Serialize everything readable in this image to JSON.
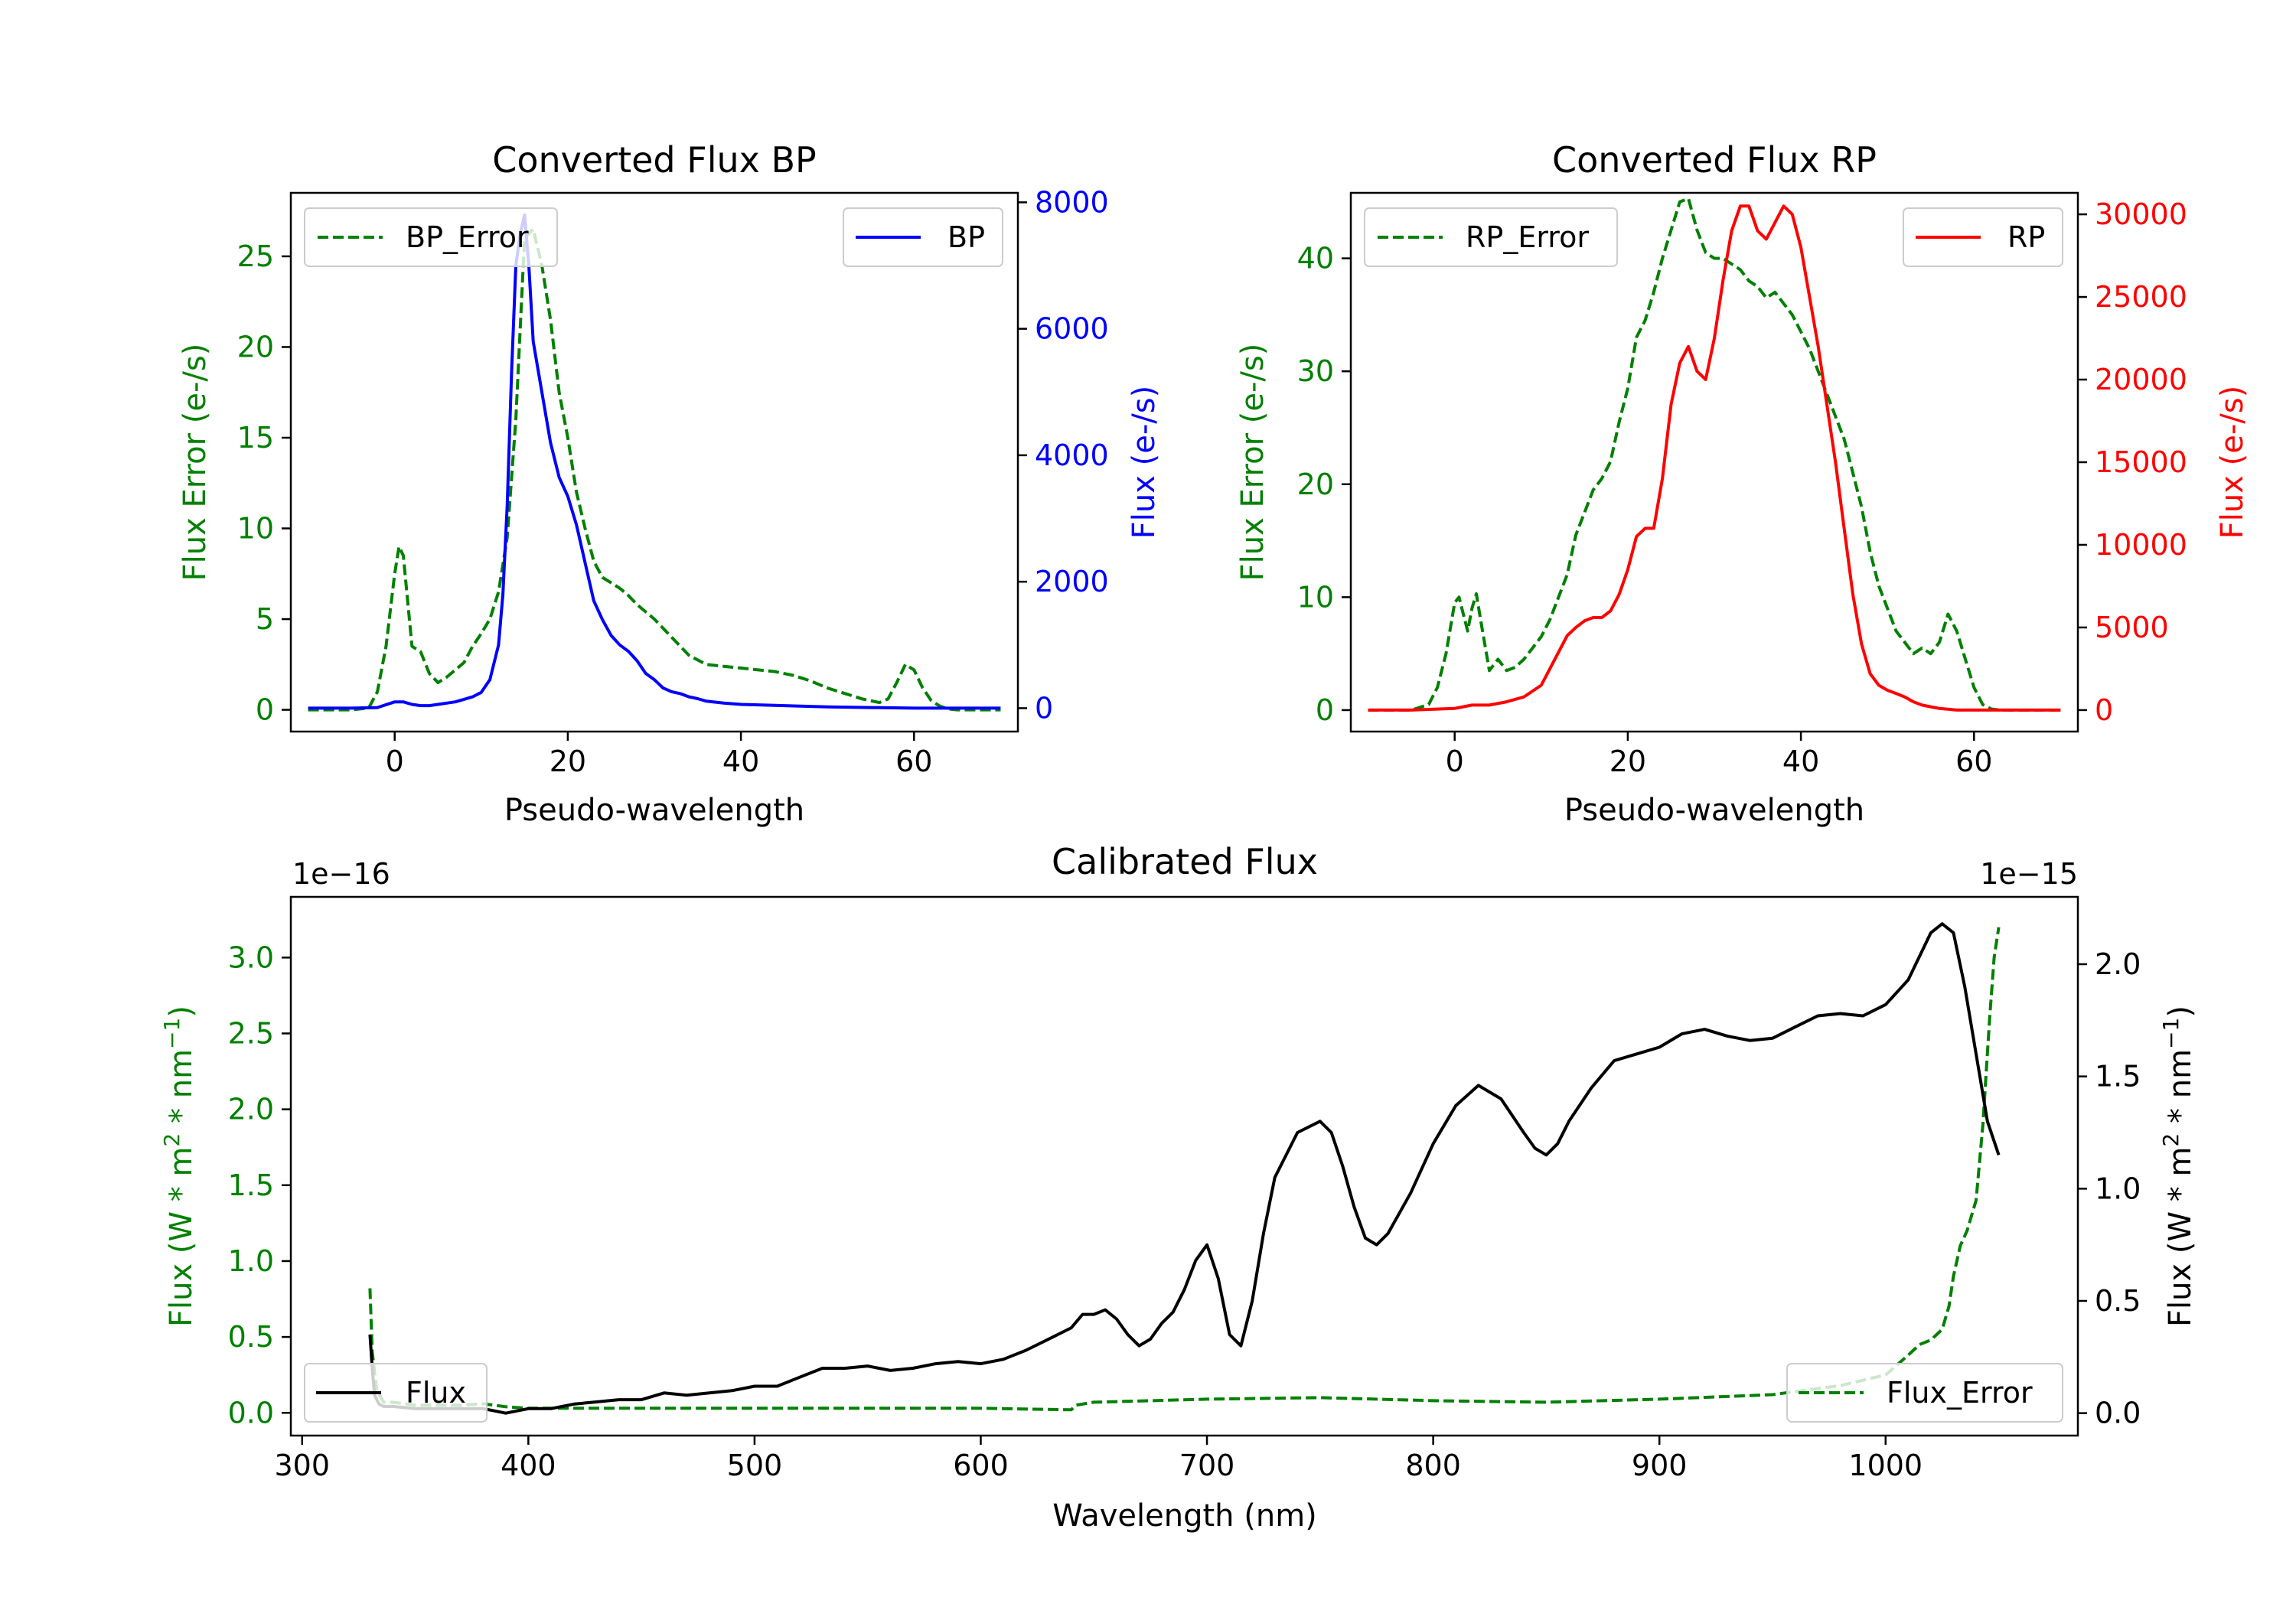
{
  "chart_data": [
    {
      "id": "bp",
      "type": "line",
      "title": "Converted Flux BP",
      "xlabel": "Pseudo-wavelength",
      "ylabel_left": "Flux Error (e-/s)",
      "ylabel_right": "Flux (e-/s)",
      "xlim": [
        -12,
        72
      ],
      "ylim_left": [
        -1.2,
        28.5
      ],
      "ylim_right": [
        -370,
        8150
      ],
      "xticks": [
        0,
        20,
        40,
        60
      ],
      "yticks_left": [
        0,
        5,
        10,
        15,
        20,
        25
      ],
      "yticks_right": [
        0,
        2000,
        4000,
        6000,
        8000
      ],
      "legend_left": "BP_Error",
      "legend_right": "BP",
      "colors": {
        "error": "#008000",
        "flux": "#0000ff"
      },
      "series": [
        {
          "name": "BP_Error",
          "axis": "left",
          "style": "dashed",
          "x": [
            -10,
            -5,
            -3,
            -2,
            -1,
            0,
            0.5,
            1,
            2,
            3,
            4,
            5,
            6,
            7,
            8,
            9,
            10,
            11,
            12,
            13,
            14,
            15,
            16,
            17,
            18,
            19,
            20,
            21,
            22,
            23,
            24,
            25,
            26,
            27,
            28,
            30,
            32,
            34,
            36,
            38,
            40,
            42,
            44,
            46,
            48,
            50,
            52,
            54,
            56,
            57,
            58,
            59,
            60,
            61,
            62,
            63,
            64,
            65,
            66,
            68,
            70
          ],
          "y": [
            0,
            0,
            0.1,
            1.0,
            3.5,
            7.5,
            9.0,
            8.5,
            3.5,
            3.2,
            2.0,
            1.5,
            1.8,
            2.2,
            2.6,
            3.5,
            4.2,
            5.0,
            6.5,
            9.5,
            16.0,
            26.0,
            26.5,
            24.5,
            21.5,
            17.5,
            15.0,
            12.0,
            10.0,
            8.2,
            7.3,
            7.0,
            6.7,
            6.3,
            5.8,
            5.0,
            4.0,
            3.0,
            2.5,
            2.4,
            2.3,
            2.2,
            2.1,
            1.9,
            1.6,
            1.2,
            0.9,
            0.6,
            0.4,
            0.6,
            1.5,
            2.5,
            2.2,
            1.2,
            0.5,
            0.2,
            0.05,
            0,
            0,
            0,
            0
          ]
        },
        {
          "name": "BP",
          "axis": "right",
          "style": "solid",
          "x": [
            -10,
            -5,
            -2,
            0,
            1,
            2,
            3,
            4,
            5,
            6,
            7,
            8,
            9,
            10,
            11,
            12,
            12.5,
            13,
            13.5,
            14,
            14.5,
            15,
            15.5,
            16,
            17,
            18,
            19,
            20,
            21,
            22,
            23,
            24,
            25,
            26,
            27,
            28,
            29,
            30,
            31,
            32,
            33,
            34,
            35,
            36,
            38,
            40,
            45,
            50,
            55,
            60,
            65,
            70
          ],
          "y": [
            0,
            0,
            10,
            100,
            100,
            60,
            40,
            40,
            60,
            80,
            100,
            140,
            180,
            250,
            450,
            1000,
            1800,
            3200,
            5300,
            7000,
            7500,
            7800,
            7000,
            5800,
            5000,
            4200,
            3650,
            3350,
            2900,
            2300,
            1700,
            1400,
            1150,
            1000,
            900,
            750,
            550,
            450,
            320,
            260,
            230,
            180,
            150,
            110,
            80,
            60,
            40,
            20,
            10,
            0,
            0,
            0
          ]
        }
      ]
    },
    {
      "id": "rp",
      "type": "line",
      "title": "Converted Flux RP",
      "xlabel": "Pseudo-wavelength",
      "ylabel_left": "Flux Error (e-/s)",
      "ylabel_right": "Flux (e-/s)",
      "xlim": [
        -12,
        72
      ],
      "ylim_left": [
        -1.9,
        45.8
      ],
      "ylim_right": [
        -1300,
        31300
      ],
      "xticks": [
        0,
        20,
        40,
        60
      ],
      "yticks_left": [
        0,
        10,
        20,
        30,
        40
      ],
      "yticks_right": [
        0,
        5000,
        10000,
        15000,
        20000,
        25000,
        30000
      ],
      "legend_left": "RP_Error",
      "legend_right": "RP",
      "colors": {
        "error": "#008000",
        "flux": "#ff0000"
      },
      "series": [
        {
          "name": "RP_Error",
          "axis": "left",
          "style": "dashed",
          "x": [
            -10,
            -5,
            -3,
            -2,
            -1,
            0,
            0.5,
            1,
            1.5,
            2,
            2.5,
            3,
            4,
            5,
            6,
            7,
            8,
            9,
            10,
            11,
            12,
            13,
            14,
            15,
            16,
            17,
            18,
            19,
            20,
            21,
            22,
            23,
            24,
            25,
            26,
            27,
            28,
            29,
            30,
            31,
            32,
            33,
            34,
            35,
            36,
            37,
            38,
            39,
            40,
            41,
            42,
            43,
            44,
            45,
            46,
            47,
            48,
            49,
            50,
            51,
            52,
            53,
            54,
            55,
            56,
            57,
            58,
            59,
            60,
            61,
            62,
            63,
            64,
            65,
            66,
            68,
            70
          ],
          "y": [
            0,
            0,
            0.5,
            2.0,
            5.0,
            9.5,
            10.0,
            8.5,
            7.0,
            9.0,
            10.3,
            8.0,
            3.5,
            4.5,
            3.5,
            3.8,
            4.5,
            5.5,
            6.5,
            8.0,
            10.0,
            12.0,
            15.5,
            17.5,
            19.5,
            20.5,
            22.0,
            25.5,
            28.5,
            33.0,
            34.5,
            37.0,
            40.0,
            42.5,
            45.0,
            45.3,
            42.5,
            40.5,
            40.0,
            40.0,
            39.5,
            39.0,
            38.0,
            37.5,
            36.5,
            37.0,
            36.0,
            35.0,
            33.5,
            32.0,
            30.0,
            28.0,
            26.0,
            24.0,
            21.0,
            18.0,
            14.0,
            11.0,
            9.0,
            7.0,
            6.0,
            5.0,
            5.5,
            5.0,
            6.0,
            8.5,
            7.0,
            4.5,
            2.0,
            0.5,
            0.1,
            0,
            0,
            0,
            0,
            0,
            0
          ]
        },
        {
          "name": "RP",
          "axis": "right",
          "style": "solid",
          "x": [
            -10,
            -5,
            0,
            2,
            4,
            6,
            8,
            10,
            11,
            12,
            13,
            14,
            15,
            16,
            17,
            18,
            19,
            20,
            21,
            22,
            23,
            24,
            25,
            26,
            27,
            28,
            29,
            30,
            31,
            32,
            33,
            34,
            35,
            36,
            37,
            38,
            39,
            40,
            41,
            42,
            43,
            44,
            45,
            46,
            47,
            48,
            49,
            50,
            51,
            52,
            53,
            54,
            55,
            56,
            57,
            58,
            60,
            62,
            64,
            66,
            68,
            70
          ],
          "y": [
            0,
            0,
            100,
            300,
            300,
            500,
            800,
            1500,
            2500,
            3500,
            4500,
            5000,
            5400,
            5600,
            5600,
            6000,
            7000,
            8500,
            10500,
            11000,
            11000,
            14000,
            18500,
            21000,
            22000,
            20500,
            20000,
            22500,
            26000,
            29000,
            30500,
            30500,
            29000,
            28500,
            29500,
            30500,
            30000,
            28000,
            25000,
            22000,
            18500,
            15000,
            11000,
            7000,
            4000,
            2200,
            1500,
            1200,
            1000,
            800,
            500,
            300,
            200,
            100,
            50,
            0,
            0,
            0,
            0,
            0,
            0,
            0
          ]
        }
      ]
    },
    {
      "id": "calibrated",
      "type": "line",
      "title": "Calibrated Flux",
      "xlabel": "Wavelength (nm)",
      "ylabel_left": "Flux (W * m2 * nm-1)",
      "ylabel_right": "Flux (W * m2 * nm-1)",
      "offset_left": "1e−16",
      "offset_right": "1e−15",
      "xlim": [
        295,
        1085
      ],
      "ylim_left": [
        -0.15,
        3.4
      ],
      "ylim_right": [
        -0.1,
        2.3
      ],
      "xticks": [
        300,
        400,
        500,
        600,
        700,
        800,
        900,
        1000
      ],
      "yticks_left": [
        0.0,
        0.5,
        1.0,
        1.5,
        2.0,
        2.5,
        3.0
      ],
      "yticks_left_labels": [
        "0.0",
        "0.5",
        "1.0",
        "1.5",
        "2.0",
        "2.5",
        "3.0"
      ],
      "yticks_right": [
        0.0,
        0.5,
        1.0,
        1.5,
        2.0
      ],
      "yticks_right_labels": [
        "0.0",
        "0.5",
        "1.0",
        "1.5",
        "2.0"
      ],
      "legend_left": "Flux",
      "legend_right": "Flux_Error",
      "colors": {
        "error": "#008000",
        "flux": "#000000"
      },
      "series": [
        {
          "name": "Flux_Error",
          "axis": "left",
          "style": "dashed",
          "x": [
            330,
            331,
            333,
            336,
            340,
            350,
            360,
            370,
            380,
            390,
            400,
            450,
            500,
            550,
            600,
            640,
            642,
            650,
            700,
            750,
            800,
            850,
            900,
            950,
            980,
            1000,
            1010,
            1015,
            1020,
            1025,
            1028,
            1030,
            1033,
            1036,
            1040,
            1043,
            1046,
            1048,
            1050
          ],
          "y": [
            0.82,
            0.4,
            0.15,
            0.07,
            0.07,
            0.05,
            0.05,
            0.05,
            0.06,
            0.04,
            0.03,
            0.03,
            0.03,
            0.03,
            0.03,
            0.02,
            0.05,
            0.07,
            0.09,
            0.1,
            0.08,
            0.07,
            0.09,
            0.12,
            0.18,
            0.25,
            0.38,
            0.45,
            0.48,
            0.55,
            0.7,
            0.9,
            1.1,
            1.2,
            1.4,
            1.9,
            2.6,
            3.0,
            3.2
          ]
        },
        {
          "name": "Flux",
          "axis": "right",
          "style": "solid",
          "x": [
            330,
            331,
            332,
            334,
            336,
            340,
            350,
            360,
            370,
            380,
            385,
            390,
            400,
            410,
            420,
            430,
            440,
            450,
            460,
            470,
            480,
            490,
            500,
            510,
            520,
            530,
            540,
            550,
            560,
            570,
            580,
            590,
            600,
            610,
            620,
            630,
            640,
            645,
            650,
            655,
            660,
            665,
            670,
            675,
            680,
            685,
            690,
            695,
            700,
            705,
            710,
            715,
            720,
            725,
            730,
            740,
            750,
            755,
            760,
            765,
            770,
            775,
            780,
            790,
            800,
            810,
            820,
            830,
            840,
            845,
            850,
            855,
            860,
            870,
            880,
            890,
            900,
            910,
            920,
            930,
            940,
            950,
            960,
            970,
            980,
            990,
            1000,
            1010,
            1020,
            1025,
            1030,
            1035,
            1040,
            1045,
            1050
          ],
          "y": [
            0.35,
            0.2,
            0.08,
            0.04,
            0.03,
            0.03,
            0.02,
            0.02,
            0.02,
            0.02,
            0.01,
            0.0,
            0.02,
            0.02,
            0.04,
            0.05,
            0.06,
            0.06,
            0.09,
            0.08,
            0.09,
            0.1,
            0.12,
            0.12,
            0.16,
            0.2,
            0.2,
            0.21,
            0.19,
            0.2,
            0.22,
            0.23,
            0.22,
            0.24,
            0.28,
            0.33,
            0.38,
            0.44,
            0.44,
            0.46,
            0.42,
            0.35,
            0.3,
            0.33,
            0.4,
            0.45,
            0.55,
            0.68,
            0.75,
            0.6,
            0.35,
            0.3,
            0.5,
            0.8,
            1.05,
            1.25,
            1.3,
            1.25,
            1.1,
            0.92,
            0.78,
            0.75,
            0.8,
            0.98,
            1.2,
            1.37,
            1.46,
            1.4,
            1.25,
            1.18,
            1.15,
            1.2,
            1.3,
            1.45,
            1.57,
            1.6,
            1.63,
            1.69,
            1.71,
            1.68,
            1.66,
            1.67,
            1.72,
            1.77,
            1.78,
            1.77,
            1.82,
            1.93,
            2.14,
            2.18,
            2.14,
            1.9,
            1.6,
            1.3,
            1.15
          ]
        }
      ]
    }
  ]
}
